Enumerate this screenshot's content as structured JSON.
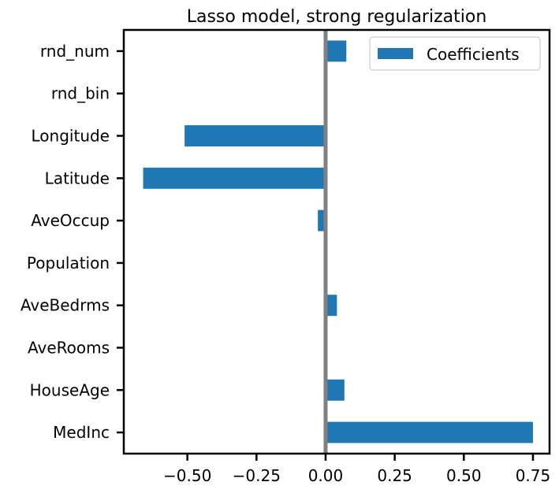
{
  "chart_data": {
    "type": "bar",
    "orientation": "horizontal",
    "title": "Lasso model, strong regularization",
    "xlabel": "",
    "ylabel": "",
    "categories": [
      "MedInc",
      "HouseAge",
      "AveRooms",
      "AveBedrms",
      "Population",
      "AveOccup",
      "Latitude",
      "Longitude",
      "rnd_bin",
      "rnd_num"
    ],
    "series": [
      {
        "name": "Coefficients",
        "values": [
          0.75,
          0.068,
          0.0,
          0.041,
          0.0,
          -0.028,
          -0.66,
          -0.51,
          0.0,
          0.075
        ],
        "color": "#1f77b4"
      }
    ],
    "xlim": [
      -0.73,
      0.81
    ],
    "xticks": [
      -0.5,
      -0.25,
      0.0,
      0.25,
      0.5,
      0.75
    ],
    "xtick_labels": [
      "−0.50",
      "−0.25",
      "0.00",
      "0.25",
      "0.50",
      "0.75"
    ],
    "zero_line": {
      "x": 0,
      "color": "#808080"
    },
    "grid": false,
    "legend_position": "top-right"
  }
}
